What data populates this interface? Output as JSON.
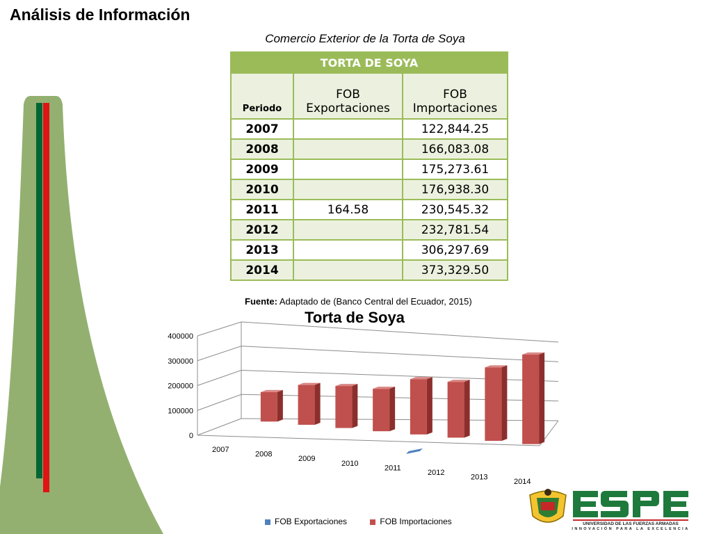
{
  "page": {
    "title": "Análisis de Información"
  },
  "table": {
    "caption": "Comercio Exterior de la Torta de Soya",
    "header": "TORTA DE SOYA",
    "col_period": "Periodo",
    "col_exports_1": "FOB",
    "col_exports_2": "Exportaciones",
    "col_imports_1": "FOB",
    "col_imports_2": "Importaciones",
    "rows": [
      {
        "year": "2007",
        "exports": "",
        "imports": "122,844.25"
      },
      {
        "year": "2008",
        "exports": "",
        "imports": "166,083.08"
      },
      {
        "year": "2009",
        "exports": "",
        "imports": "175,273.61"
      },
      {
        "year": "2010",
        "exports": "",
        "imports": "176,938.30"
      },
      {
        "year": "2011",
        "exports": "164.58",
        "imports": "230,545.32"
      },
      {
        "year": "2012",
        "exports": "",
        "imports": "232,781.54"
      },
      {
        "year": "2013",
        "exports": "",
        "imports": "306,297.69"
      },
      {
        "year": "2014",
        "exports": "",
        "imports": "373,329.50"
      }
    ],
    "source_label": "Fuente:",
    "source_text": "Adaptado de (Banco Central del Ecuador, 2015)"
  },
  "chart_data": {
    "type": "bar",
    "title": "Torta de Soya",
    "categories": [
      "2007",
      "2008",
      "2009",
      "2010",
      "2011",
      "2012",
      "2013",
      "2014"
    ],
    "series": [
      {
        "name": "FOB Exportaciones",
        "color": "#4f81bd",
        "values": [
          0,
          0,
          0,
          0,
          164.58,
          0,
          0,
          0
        ]
      },
      {
        "name": "FOB Importaciones",
        "color": "#c0504d",
        "values": [
          122844.25,
          166083.08,
          175273.61,
          176938.3,
          230545.32,
          232781.54,
          306297.69,
          373329.5
        ]
      }
    ],
    "y_ticks": [
      "0",
      "100000",
      "200000",
      "300000",
      "400000"
    ],
    "ylim": [
      0,
      400000
    ],
    "legend": "bottom",
    "grid": true
  },
  "logo": {
    "name": "ESPE",
    "line1": "UNIVERSIDAD DE LAS FUERZAS ARMADAS",
    "line2": "INNOVACIÓN PARA LA EXCELENCIA",
    "colors": {
      "green": "#006633",
      "red": "#cc0000",
      "sidebar_green": "#8aa864"
    }
  }
}
